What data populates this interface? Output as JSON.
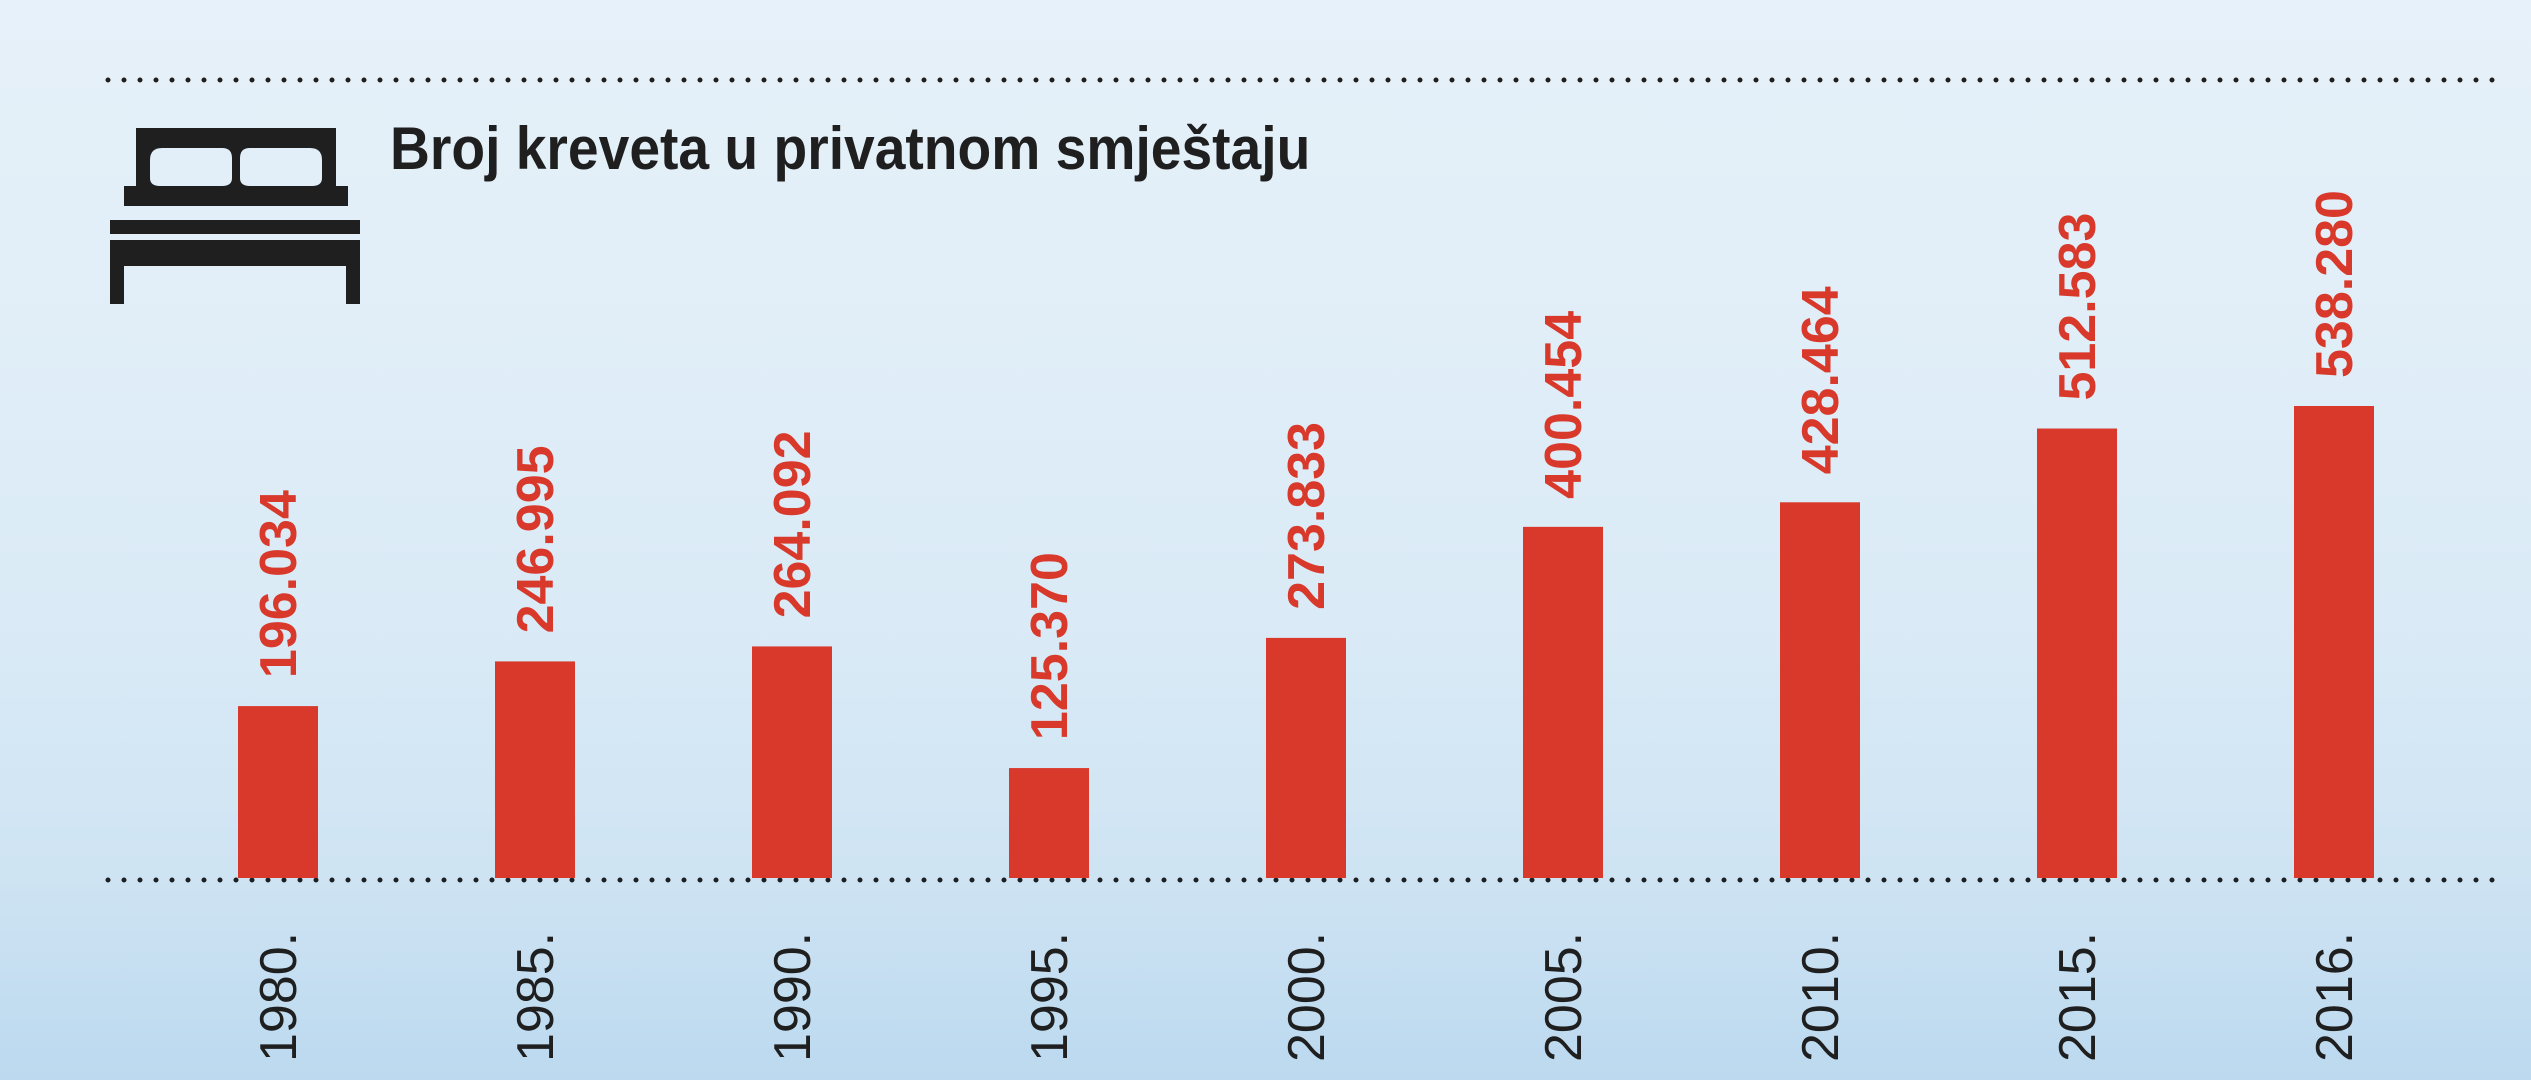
{
  "chart_data": {
    "type": "bar",
    "title": "Broj kreveta u privatnom smještaju",
    "categories": [
      "1980.",
      "1985.",
      "1990.",
      "1995.",
      "2000.",
      "2005.",
      "2010.",
      "2015.",
      "2016."
    ],
    "values": [
      196034,
      246995,
      264092,
      125370,
      273833,
      400454,
      428464,
      512583,
      538280
    ],
    "value_labels": [
      "196.034",
      "246.995",
      "264.092",
      "125.370",
      "273.833",
      "400.454",
      "428.464",
      "512.583",
      "538.280"
    ],
    "xlabel": "",
    "ylabel": "",
    "ylim": [
      0,
      538280
    ],
    "grid": false,
    "legend": "none",
    "bar_color": "#d8392b",
    "label_color": "#d8392b",
    "icon": "bed-icon"
  }
}
